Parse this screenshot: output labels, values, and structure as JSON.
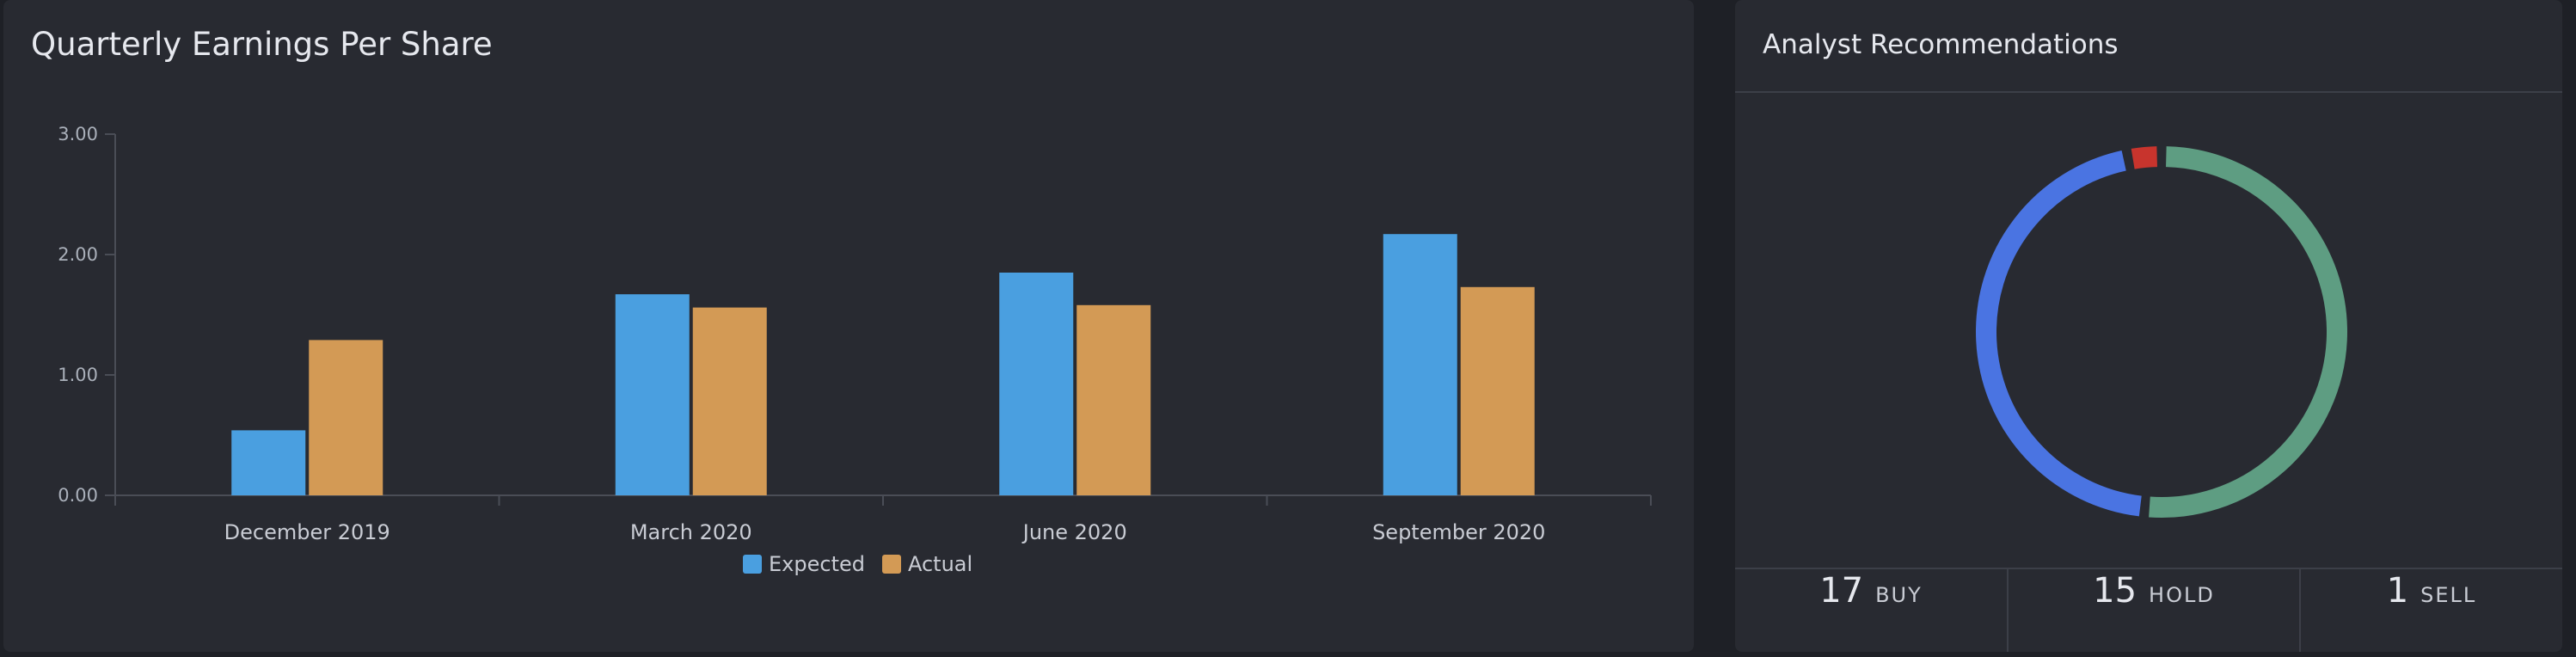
{
  "eps_panel": {
    "title": "Quarterly Earnings Per Share"
  },
  "analyst_panel": {
    "title": "Analyst Recommendations",
    "stats": [
      {
        "count": "17",
        "label": "BUY"
      },
      {
        "count": "15",
        "label": "HOLD"
      },
      {
        "count": "1",
        "label": "SELL"
      }
    ]
  },
  "colors": {
    "expected": "#4a9fe0",
    "actual": "#d39a55",
    "buy": "#5e9d82",
    "hold": "#4a74e2",
    "sell": "#c8342d",
    "axis": "#4a4d56",
    "tick_text": "#aab0ba",
    "background": "#282a31"
  },
  "chart_data": {
    "type": "bar",
    "title": "Quarterly Earnings Per Share",
    "xlabel": "",
    "ylabel": "",
    "categories": [
      "December 2019",
      "March 2020",
      "June 2020",
      "September 2020"
    ],
    "series": [
      {
        "name": "Expected",
        "values": [
          0.54,
          1.67,
          1.85,
          2.17
        ]
      },
      {
        "name": "Actual",
        "values": [
          1.29,
          1.56,
          1.58,
          1.73
        ]
      }
    ],
    "ylim": [
      0,
      3
    ],
    "yticks": [
      "0.00",
      "1.00",
      "2.00",
      "3.00"
    ],
    "grid": false,
    "legend": "bottom-center"
  },
  "donut_data": {
    "type": "pie",
    "labels": [
      "BUY",
      "HOLD",
      "SELL"
    ],
    "values": [
      17,
      15,
      1
    ]
  }
}
